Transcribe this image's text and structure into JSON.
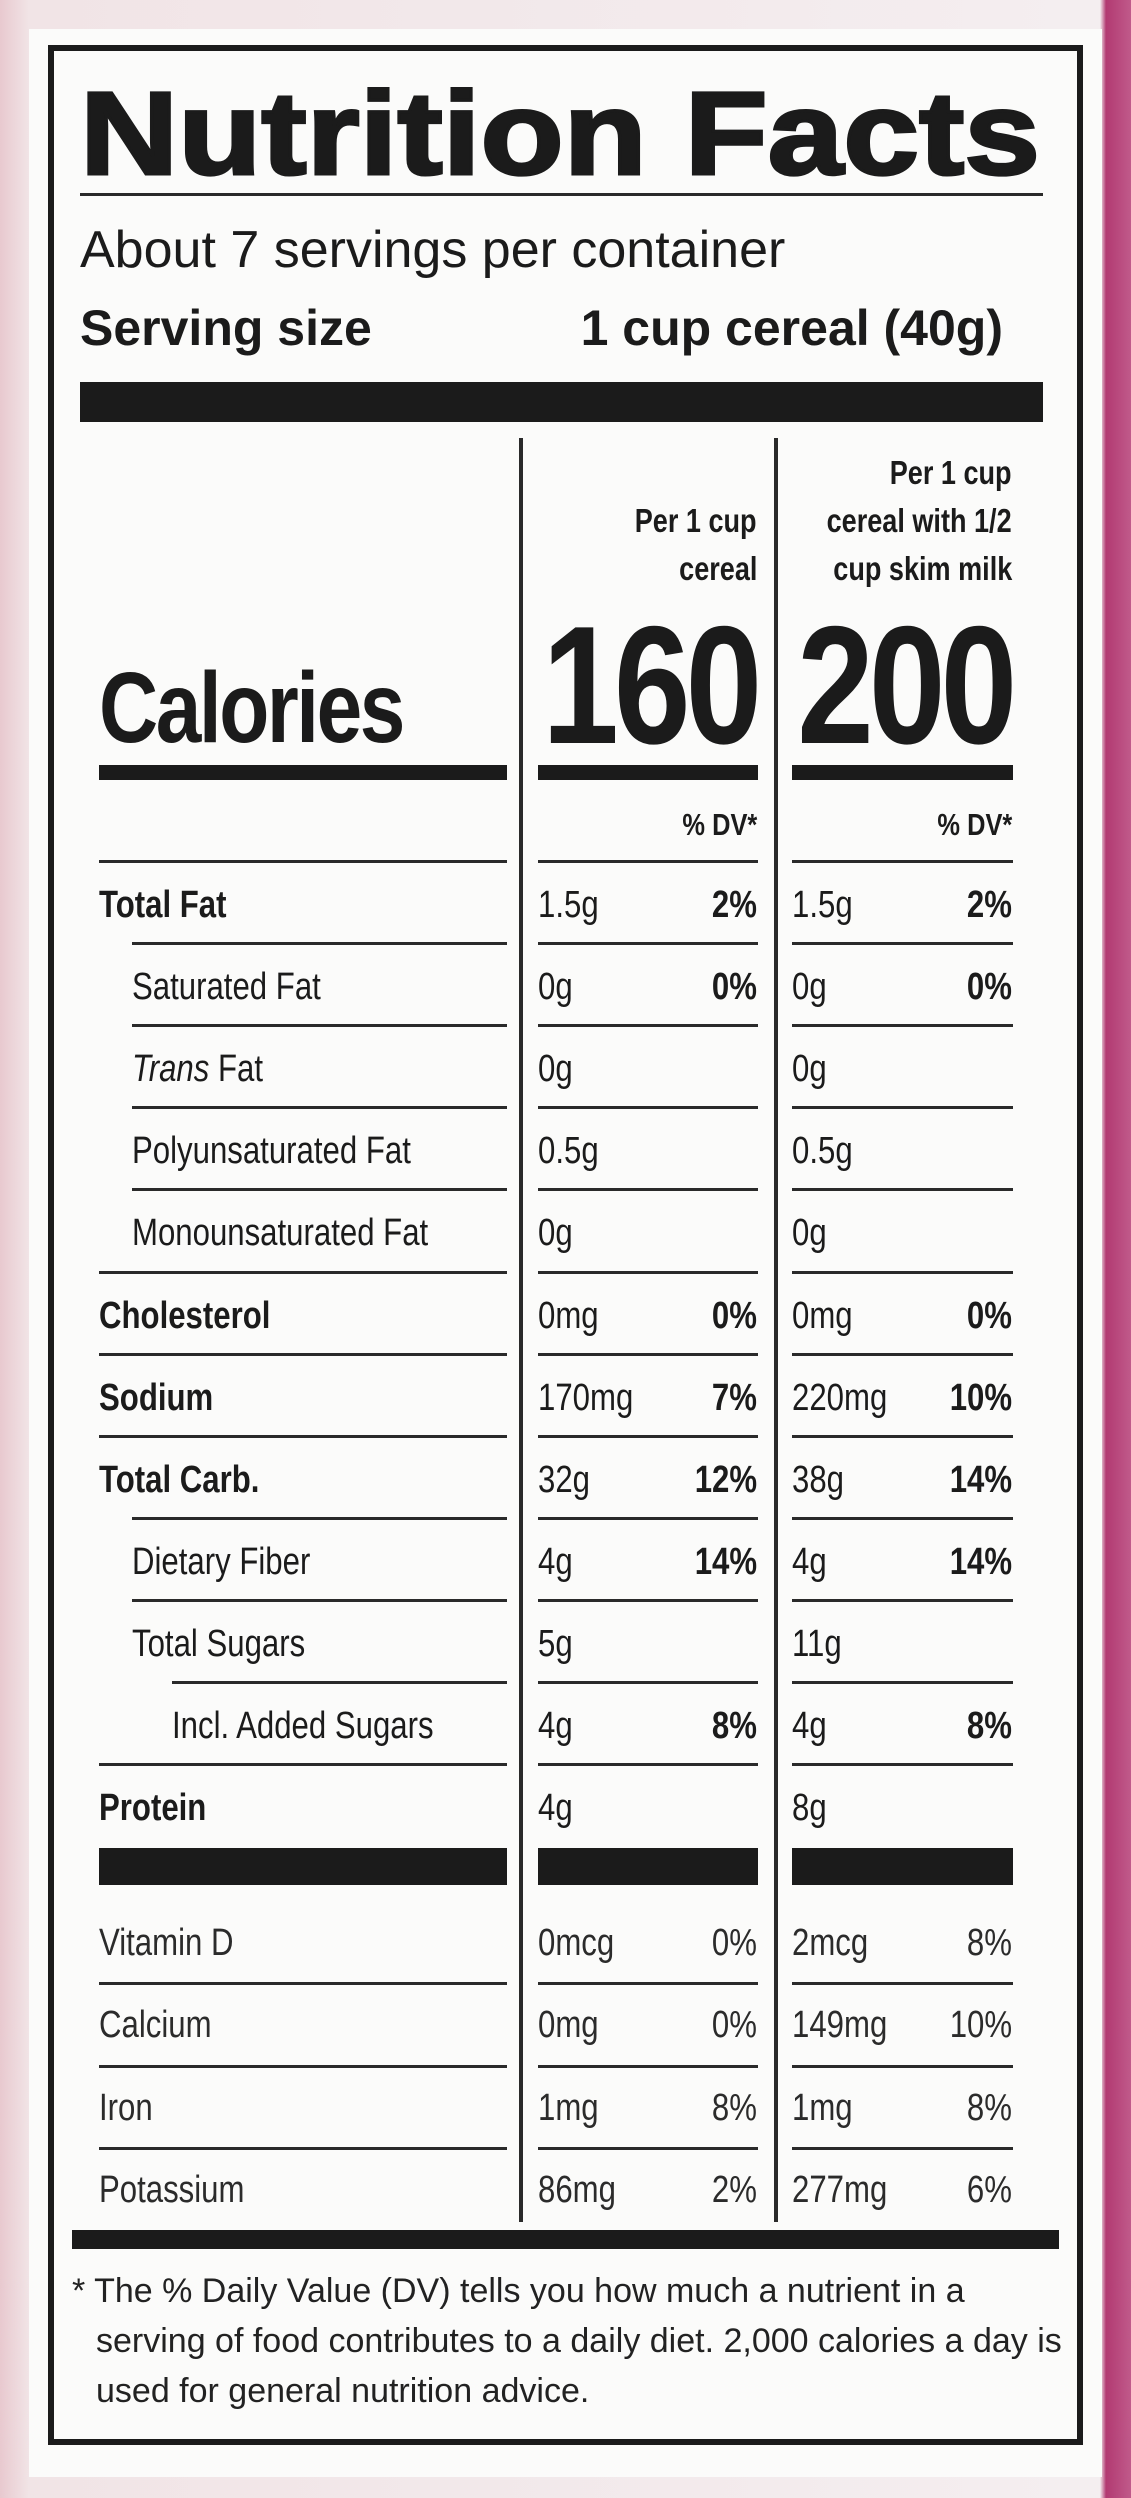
{
  "header": {
    "title": "Nutrition Facts",
    "servings": "About 7 servings per container",
    "serving_size_label": "Serving size",
    "serving_size_value": "1 cup cereal (40g)"
  },
  "columns": [
    {
      "header": [
        "Per 1 cup",
        "cereal"
      ],
      "calories": "160"
    },
    {
      "header": [
        "Per 1 cup",
        "cereal with 1/2",
        "cup skim milk"
      ],
      "calories": "200"
    }
  ],
  "calories_label": "Calories",
  "dv_label": "% DV*",
  "nutrients": [
    {
      "label": "Total Fat",
      "values": [
        [
          "1.5g",
          "2%"
        ],
        [
          "1.5g",
          "2%"
        ]
      ],
      "sub": [
        {
          "label": "Saturated Fat",
          "values": [
            [
              "0g",
              "0%"
            ],
            [
              "0g",
              "0%"
            ]
          ]
        },
        {
          "label_italic": "Trans",
          "label": "Fat",
          "values": [
            [
              "0g"
            ],
            [
              "0g"
            ]
          ]
        },
        {
          "label": "Polyunsaturated Fat",
          "values": [
            [
              "0.5g"
            ],
            [
              "0.5g"
            ]
          ]
        },
        {
          "label": "Monounsaturated Fat",
          "values": [
            [
              "0g"
            ],
            [
              "0g"
            ]
          ]
        }
      ]
    },
    {
      "label": "Cholesterol",
      "values": [
        [
          "0mg",
          "0%"
        ],
        [
          "0mg",
          "0%"
        ]
      ]
    },
    {
      "label": "Sodium",
      "values": [
        [
          "170mg",
          "7%"
        ],
        [
          "220mg",
          "10%"
        ]
      ]
    },
    {
      "label": "Total Carb.",
      "values": [
        [
          "32g",
          "12%"
        ],
        [
          "38g",
          "14%"
        ]
      ],
      "sub": [
        {
          "label": "Dietary Fiber",
          "values": [
            [
              "4g",
              "14%"
            ],
            [
              "4g",
              "14%"
            ]
          ]
        },
        {
          "label": "Total Sugars",
          "values": [
            [
              "5g"
            ],
            [
              "11g"
            ]
          ],
          "sub": [
            {
              "label": "Incl. Added Sugars",
              "values": [
                [
                  "4g",
                  "8%"
                ],
                [
                  "4g",
                  "8%"
                ]
              ]
            }
          ]
        }
      ]
    },
    {
      "label": "Protein",
      "values": [
        [
          "4g"
        ],
        [
          "8g"
        ]
      ]
    }
  ],
  "vitamins": [
    {
      "label": "Vitamin D",
      "values": [
        [
          "0mcg",
          "0%"
        ],
        [
          "2mcg",
          "8%"
        ]
      ]
    },
    {
      "label": "Calcium",
      "values": [
        [
          "0mg",
          "0%"
        ],
        [
          "149mg",
          "10%"
        ]
      ]
    },
    {
      "label": "Iron",
      "values": [
        [
          "1mg",
          "8%"
        ],
        [
          "1mg",
          "8%"
        ]
      ]
    },
    {
      "label": "Potassium",
      "values": [
        [
          "86mg",
          "2%"
        ],
        [
          "277mg",
          "6%"
        ]
      ]
    }
  ],
  "footnote": "* The % Daily Value (DV) tells you how much a nutrient in a serving of food contributes to a daily diet. 2,000 calories a day is used for general nutrition advice."
}
